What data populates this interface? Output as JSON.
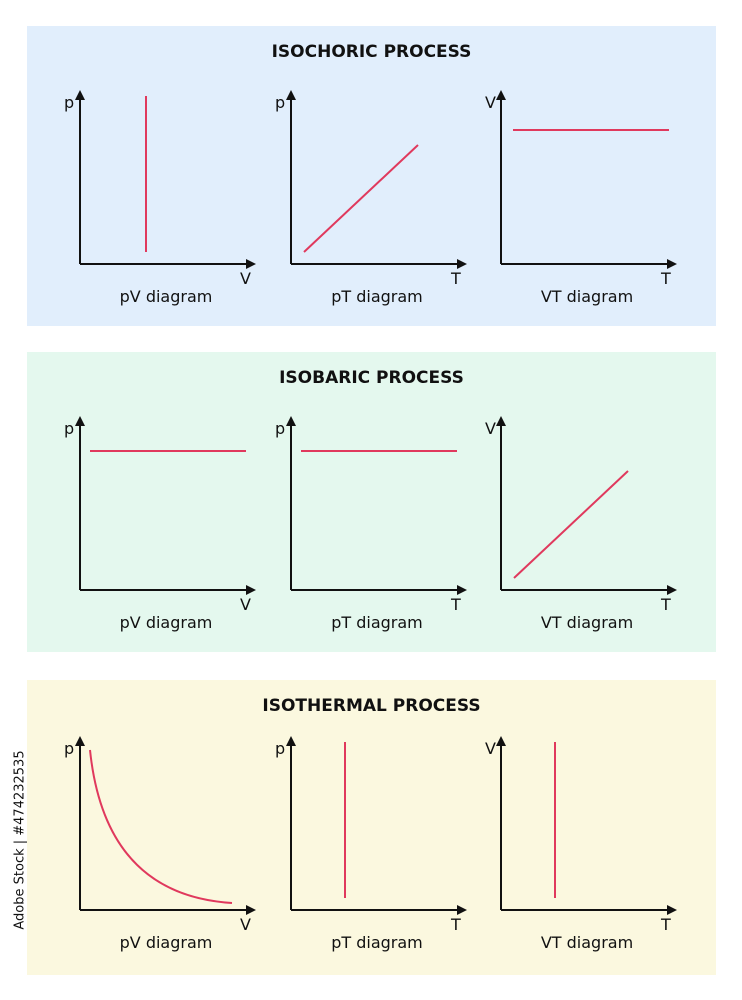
{
  "colors": {
    "curve": "#e0395d",
    "axis": "#111111",
    "isochoric_bg": "#e1eefc",
    "isobaric_bg": "#e4f8ee",
    "isothermal_bg": "#fbf8df"
  },
  "sections": [
    {
      "title": "ISOCHORIC PROCESS",
      "diagrams": [
        {
          "caption": "pV diagram",
          "y_label": "p",
          "x_label": "V",
          "curve": "vertical"
        },
        {
          "caption": "pT diagram",
          "y_label": "p",
          "x_label": "T",
          "curve": "rising"
        },
        {
          "caption": "VT diagram",
          "y_label": "V",
          "x_label": "T",
          "curve": "horizontal"
        }
      ]
    },
    {
      "title": "ISOBARIC PROCESS",
      "diagrams": [
        {
          "caption": "pV diagram",
          "y_label": "p",
          "x_label": "V",
          "curve": "horizontal"
        },
        {
          "caption": "pT diagram",
          "y_label": "p",
          "x_label": "T",
          "curve": "horizontal"
        },
        {
          "caption": "VT diagram",
          "y_label": "V",
          "x_label": "T",
          "curve": "rising"
        }
      ]
    },
    {
      "title": "ISOTHERMAL PROCESS",
      "diagrams": [
        {
          "caption": "pV diagram",
          "y_label": "p",
          "x_label": "V",
          "curve": "hyperbola"
        },
        {
          "caption": "pT diagram",
          "y_label": "p",
          "x_label": "T",
          "curve": "vertical"
        },
        {
          "caption": "VT diagram",
          "y_label": "V",
          "x_label": "T",
          "curve": "vertical"
        }
      ]
    }
  ],
  "sidebar_text": "Adobe Stock | #474232535"
}
